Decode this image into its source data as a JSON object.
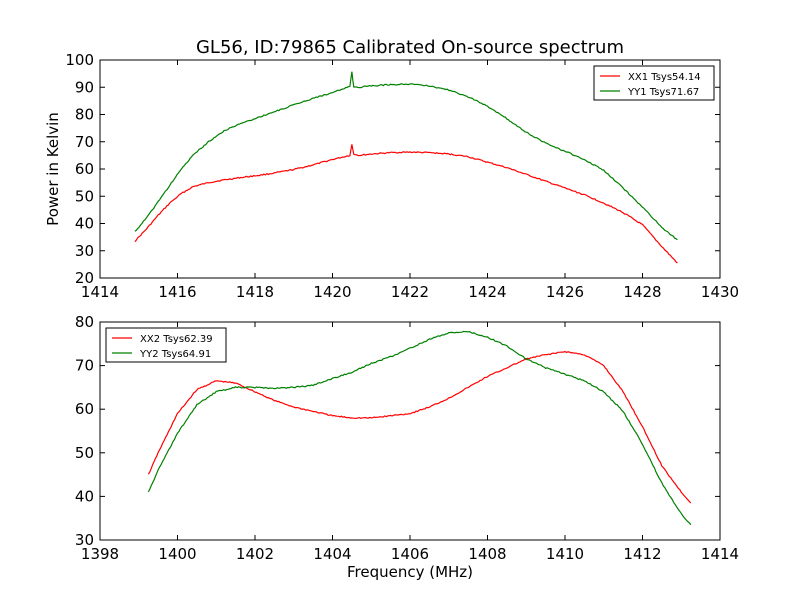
{
  "figure": {
    "title": "GL56, ID:79865 Calibrated On-source spectrum"
  },
  "chart_data": [
    {
      "type": "line",
      "panel": "top",
      "title": "GL56, ID:79865 Calibrated On-source spectrum",
      "xlabel": "",
      "ylabel": "Power in Kelvin",
      "xlim": [
        1414,
        1430
      ],
      "ylim": [
        20,
        100
      ],
      "xticks": [
        "1414",
        "1416",
        "1418",
        "1420",
        "1422",
        "1424",
        "1426",
        "1428",
        "1430"
      ],
      "yticks": [
        "20",
        "30",
        "40",
        "50",
        "60",
        "70",
        "80",
        "90",
        "100"
      ],
      "grid": false,
      "legend_position": "top-right",
      "series": [
        {
          "name": "XX1 Tsys54.14",
          "color": "#ff0000",
          "x": [
            1414.9,
            1415.2,
            1415.5,
            1415.8,
            1416.1,
            1416.4,
            1416.8,
            1417.2,
            1417.6,
            1418.0,
            1418.5,
            1419.0,
            1419.5,
            1420.0,
            1420.3,
            1420.45,
            1420.5,
            1420.55,
            1420.7,
            1421.0,
            1421.5,
            1422.0,
            1422.5,
            1423.0,
            1423.5,
            1424.0,
            1424.5,
            1425.0,
            1425.5,
            1426.0,
            1426.5,
            1427.0,
            1427.5,
            1428.0,
            1428.5,
            1428.9
          ],
          "y": [
            33.5,
            38.0,
            43.0,
            47.5,
            51.0,
            53.5,
            55.0,
            56.0,
            56.8,
            57.5,
            58.5,
            59.8,
            61.5,
            63.5,
            64.5,
            65.0,
            69.0,
            65.5,
            65.0,
            65.5,
            66.0,
            66.2,
            66.0,
            65.5,
            64.5,
            62.5,
            60.5,
            58.0,
            55.5,
            53.0,
            50.5,
            47.5,
            44.0,
            39.5,
            31.5,
            25.5
          ]
        },
        {
          "name": "YY1 Tsys71.67",
          "color": "#008000",
          "x": [
            1414.9,
            1415.2,
            1415.5,
            1415.8,
            1416.1,
            1416.4,
            1416.8,
            1417.2,
            1417.6,
            1418.0,
            1418.5,
            1419.0,
            1419.5,
            1420.0,
            1420.3,
            1420.45,
            1420.5,
            1420.55,
            1420.7,
            1421.0,
            1421.5,
            1422.0,
            1422.5,
            1423.0,
            1423.5,
            1424.0,
            1424.5,
            1425.0,
            1425.5,
            1426.0,
            1426.5,
            1427.0,
            1427.5,
            1428.0,
            1428.5,
            1428.9
          ],
          "y": [
            37.0,
            42.0,
            48.0,
            54.0,
            60.0,
            65.0,
            70.0,
            74.0,
            76.5,
            78.5,
            81.0,
            83.5,
            86.0,
            88.0,
            89.5,
            90.5,
            95.5,
            90.0,
            90.0,
            90.5,
            91.0,
            91.2,
            90.5,
            89.0,
            86.5,
            83.0,
            78.5,
            73.5,
            69.5,
            66.5,
            63.5,
            59.5,
            53.0,
            46.0,
            38.5,
            34.0
          ]
        }
      ]
    },
    {
      "type": "line",
      "panel": "bottom",
      "title": "",
      "xlabel": "Frequency (MHz)",
      "ylabel": "",
      "xlim": [
        1398,
        1414
      ],
      "ylim": [
        30,
        80
      ],
      "xticks": [
        "1398",
        "1400",
        "1402",
        "1404",
        "1406",
        "1408",
        "1410",
        "1412",
        "1414"
      ],
      "yticks": [
        "30",
        "40",
        "50",
        "60",
        "70",
        "80"
      ],
      "grid": false,
      "legend_position": "top-left",
      "series": [
        {
          "name": "XX2 Tsys62.39",
          "color": "#ff0000",
          "x": [
            1399.25,
            1399.5,
            1400.0,
            1400.5,
            1401.0,
            1401.5,
            1402.0,
            1402.5,
            1403.0,
            1403.5,
            1404.0,
            1404.5,
            1405.0,
            1405.5,
            1406.0,
            1406.5,
            1407.0,
            1407.5,
            1408.0,
            1408.5,
            1409.0,
            1409.5,
            1410.0,
            1410.5,
            1411.0,
            1411.5,
            1412.0,
            1412.5,
            1413.0,
            1413.25
          ],
          "y": [
            45.0,
            50.0,
            59.0,
            64.5,
            66.5,
            66.0,
            64.0,
            62.0,
            60.5,
            59.5,
            58.5,
            58.0,
            58.0,
            58.5,
            59.0,
            60.5,
            62.5,
            65.0,
            67.5,
            69.5,
            71.5,
            72.5,
            73.2,
            72.5,
            70.0,
            64.0,
            56.0,
            47.0,
            41.0,
            38.5
          ]
        },
        {
          "name": "YY2 Tsys64.91",
          "color": "#008000",
          "x": [
            1399.25,
            1399.5,
            1400.0,
            1400.5,
            1401.0,
            1401.5,
            1402.0,
            1402.5,
            1403.0,
            1403.5,
            1404.0,
            1404.5,
            1405.0,
            1405.5,
            1406.0,
            1406.5,
            1407.0,
            1407.5,
            1408.0,
            1408.5,
            1409.0,
            1409.5,
            1410.0,
            1410.5,
            1411.0,
            1411.5,
            1412.0,
            1412.5,
            1413.0,
            1413.25
          ],
          "y": [
            41.0,
            46.0,
            54.5,
            61.0,
            64.0,
            65.0,
            65.0,
            64.8,
            65.0,
            65.5,
            67.0,
            68.5,
            70.5,
            72.0,
            74.0,
            76.0,
            77.5,
            77.8,
            76.5,
            74.5,
            71.5,
            69.5,
            68.0,
            66.5,
            64.0,
            59.5,
            52.0,
            43.0,
            36.0,
            33.5
          ]
        }
      ]
    }
  ]
}
